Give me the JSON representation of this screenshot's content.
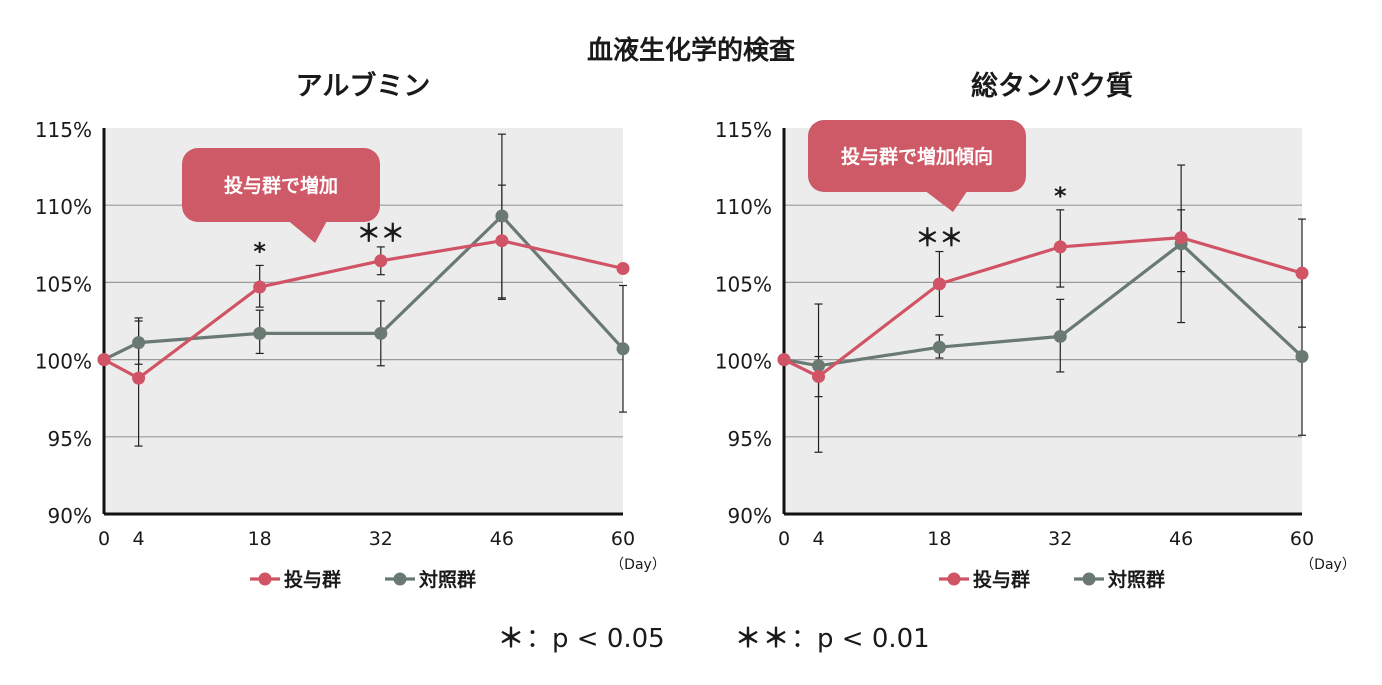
{
  "title": "血液生化学的検査",
  "colors": {
    "treatment": "#d05466",
    "control": "#6a7a72",
    "plot_bg": "#ececec",
    "grid": "#9a9a9a",
    "callout": "#cf5a67"
  },
  "chart_data": [
    {
      "type": "line",
      "title": "アルブミン",
      "xlabel": "",
      "x_unit": "（Day）",
      "ylabel": "",
      "x": [
        0,
        4,
        18,
        32,
        46,
        60
      ],
      "x_tick_labels": [
        "0",
        "4",
        "18",
        "32",
        "46",
        "60"
      ],
      "xlim": [
        0,
        60
      ],
      "ylim": [
        90,
        115
      ],
      "y_ticks": [
        90,
        95,
        100,
        105,
        110,
        115
      ],
      "y_tick_labels": [
        "90%",
        "95%",
        "100%",
        "105%",
        "110%",
        "115%"
      ],
      "series": [
        {
          "name": "投与群",
          "key": "treatment",
          "values": [
            100,
            98.8,
            104.7,
            106.4,
            107.7,
            105.9
          ],
          "err_low": [
            null,
            4.4,
            1.3,
            0.9,
            3.8,
            null
          ],
          "err_high": [
            null,
            3.9,
            1.4,
            0.9,
            3.6,
            null
          ]
        },
        {
          "name": "対照群",
          "key": "control",
          "values": [
            100,
            101.1,
            101.7,
            101.7,
            109.3,
            100.7
          ],
          "err_low": [
            null,
            1.4,
            1.3,
            2.1,
            5.3,
            4.1
          ],
          "err_high": [
            null,
            1.4,
            1.5,
            2.1,
            5.3,
            4.1
          ]
        }
      ],
      "significance": [
        {
          "x": 18,
          "label": "*"
        },
        {
          "x": 32,
          "label": "＊＊"
        }
      ],
      "callout": "投与群で増加",
      "legend": [
        "投与群",
        "対照群"
      ]
    },
    {
      "type": "line",
      "title": "総タンパク質",
      "xlabel": "",
      "x_unit": "（Day）",
      "ylabel": "",
      "x": [
        0,
        4,
        18,
        32,
        46,
        60
      ],
      "x_tick_labels": [
        "0",
        "4",
        "18",
        "32",
        "46",
        "60"
      ],
      "xlim": [
        0,
        60
      ],
      "ylim": [
        90,
        115
      ],
      "y_ticks": [
        90,
        95,
        100,
        105,
        110,
        115
      ],
      "y_tick_labels": [
        "90%",
        "95%",
        "100%",
        "105%",
        "110%",
        "115%"
      ],
      "series": [
        {
          "name": "投与群",
          "key": "treatment",
          "values": [
            100,
            98.9,
            104.9,
            107.3,
            107.9,
            105.6
          ],
          "err_low": [
            null,
            1.3,
            2.1,
            2.6,
            2.2,
            3.5
          ],
          "err_high": [
            null,
            1.3,
            2.1,
            2.4,
            1.8,
            3.5
          ]
        },
        {
          "name": "対照群",
          "key": "control",
          "values": [
            100,
            99.6,
            100.8,
            101.5,
            107.5,
            100.2
          ],
          "err_low": [
            null,
            5.6,
            0.7,
            2.3,
            5.1,
            5.1
          ],
          "err_high": [
            null,
            4.0,
            0.8,
            2.4,
            5.1,
            5.1
          ]
        }
      ],
      "significance": [
        {
          "x": 18,
          "label": "＊＊"
        },
        {
          "x": 32,
          "label": "*"
        }
      ],
      "callout": "投与群で増加傾向",
      "legend": [
        "投与群",
        "対照群"
      ]
    }
  ],
  "footnotes": [
    {
      "stars": "＊",
      "text": "：p < 0.05"
    },
    {
      "stars": "＊＊",
      "text": "：p < 0.01"
    }
  ]
}
